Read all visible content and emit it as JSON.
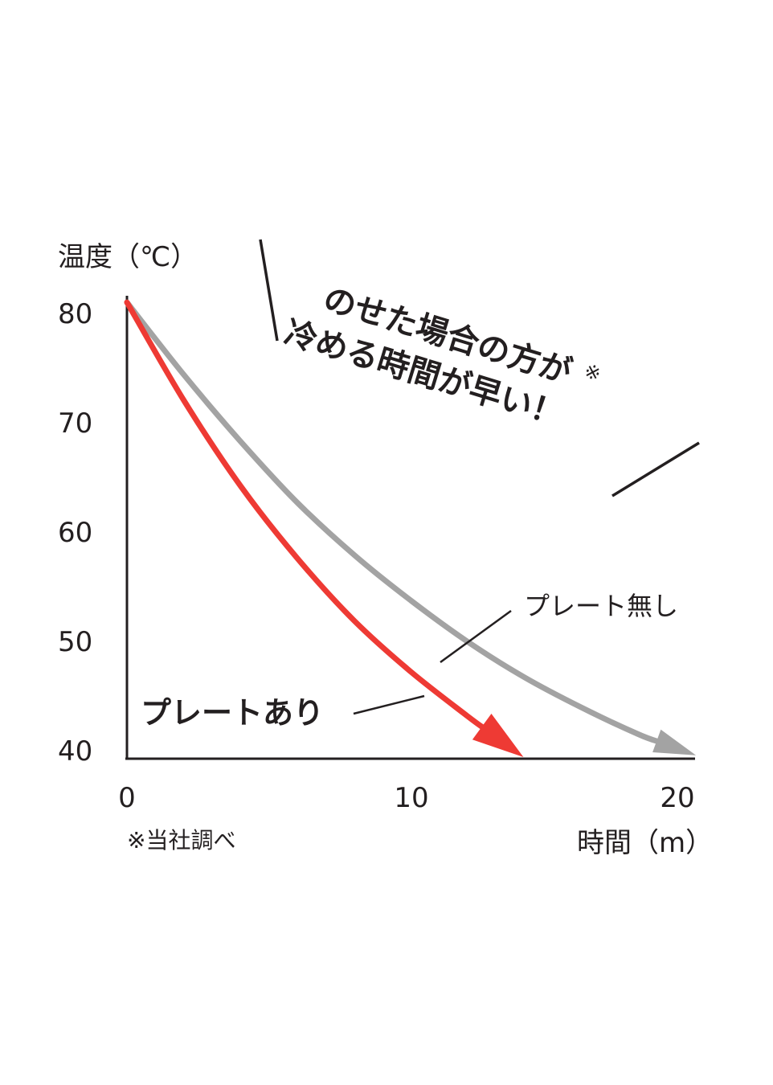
{
  "chart_data": {
    "type": "line",
    "ylabel": "温度（℃）",
    "xlabel": "時間（m）",
    "yticks": [
      "80",
      "70",
      "60",
      "50",
      "40"
    ],
    "xticks": [
      "0",
      "10",
      "20"
    ],
    "xlim": [
      0,
      20
    ],
    "ylim": [
      40,
      80
    ],
    "grid": false,
    "series": [
      {
        "name": "プレート無し",
        "color": "#a3a3a3",
        "x": [
          0,
          2,
          4,
          6,
          8,
          10,
          12,
          14,
          16,
          18,
          19.5
        ],
        "y": [
          81,
          74.5,
          68.5,
          63,
          58.3,
          54.2,
          50.5,
          47.3,
          44.6,
          42.2,
          40.8
        ]
      },
      {
        "name": "プレートあり",
        "color": "#ee3a34",
        "x": [
          0,
          2,
          4,
          6,
          8,
          10,
          12,
          13.5
        ],
        "y": [
          81,
          72.2,
          64.5,
          58,
          52.4,
          47.8,
          43.8,
          41
        ]
      }
    ],
    "annotation": {
      "line1": "のせた場合の方が",
      "line2": "冷める時間が早い！",
      "mark": "※"
    },
    "footnote": "※当社調べ"
  }
}
